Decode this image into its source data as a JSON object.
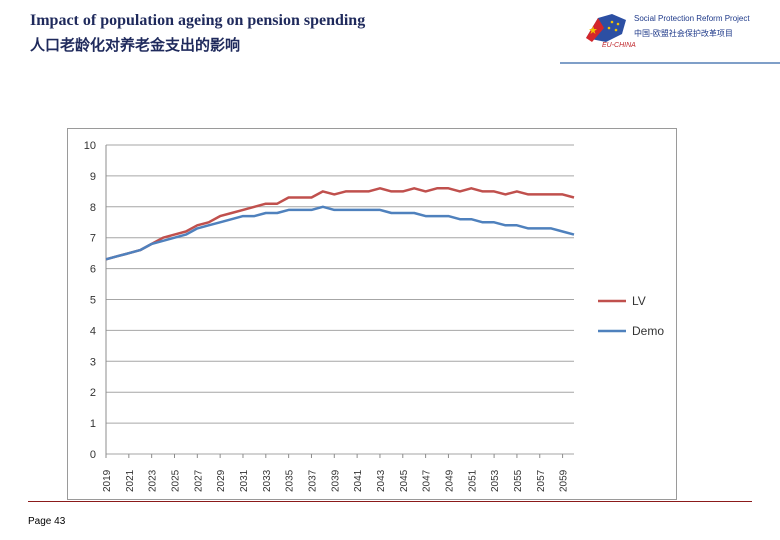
{
  "header": {
    "title_en": "Impact of population ageing on pension spending",
    "title_zh": "人口老龄化对养老金支出的影响"
  },
  "logo": {
    "name": "Social Protection Reform Project",
    "name_zh": "中国-欧盟社会保护改革项目",
    "tag": "EU-CHINA"
  },
  "footer": {
    "page_label": "Page 43"
  },
  "colors": {
    "lv": "#c0504d",
    "demo": "#4f81bd",
    "grid": "#a6a6a6",
    "frame": "#9a9a9a"
  },
  "chart_data": {
    "type": "line",
    "title": "",
    "xlabel": "",
    "ylabel": "",
    "ylim": [
      0,
      10
    ],
    "yticks": [
      "0",
      "1",
      "2",
      "3",
      "4",
      "5",
      "6",
      "7",
      "8",
      "9",
      "10"
    ],
    "x_tick_labels": [
      "2019",
      "2021",
      "2023",
      "2025",
      "2027",
      "2029",
      "2031",
      "2033",
      "2035",
      "2037",
      "2039",
      "2041",
      "2043",
      "2045",
      "2047",
      "2049",
      "2051",
      "2053",
      "2055",
      "2057",
      "2059"
    ],
    "x": [
      2019,
      2020,
      2021,
      2022,
      2023,
      2024,
      2025,
      2026,
      2027,
      2028,
      2029,
      2030,
      2031,
      2032,
      2033,
      2034,
      2035,
      2036,
      2037,
      2038,
      2039,
      2040,
      2041,
      2042,
      2043,
      2044,
      2045,
      2046,
      2047,
      2048,
      2049,
      2050,
      2051,
      2052,
      2053,
      2054,
      2055,
      2056,
      2057,
      2058,
      2059,
      2060
    ],
    "legend_position": "right",
    "series": [
      {
        "name": "LV",
        "color": "#c0504d",
        "values": [
          6.3,
          6.4,
          6.5,
          6.6,
          6.8,
          7.0,
          7.1,
          7.2,
          7.4,
          7.5,
          7.7,
          7.8,
          7.9,
          8.0,
          8.1,
          8.1,
          8.3,
          8.3,
          8.3,
          8.5,
          8.4,
          8.5,
          8.5,
          8.5,
          8.6,
          8.5,
          8.5,
          8.6,
          8.5,
          8.6,
          8.6,
          8.5,
          8.6,
          8.5,
          8.5,
          8.4,
          8.5,
          8.4,
          8.4,
          8.4,
          8.4,
          8.3
        ]
      },
      {
        "name": "Demo",
        "color": "#4f81bd",
        "values": [
          6.3,
          6.4,
          6.5,
          6.6,
          6.8,
          6.9,
          7.0,
          7.1,
          7.3,
          7.4,
          7.5,
          7.6,
          7.7,
          7.7,
          7.8,
          7.8,
          7.9,
          7.9,
          7.9,
          8.0,
          7.9,
          7.9,
          7.9,
          7.9,
          7.9,
          7.8,
          7.8,
          7.8,
          7.7,
          7.7,
          7.7,
          7.6,
          7.6,
          7.5,
          7.5,
          7.4,
          7.4,
          7.3,
          7.3,
          7.3,
          7.2,
          7.1
        ]
      }
    ]
  }
}
